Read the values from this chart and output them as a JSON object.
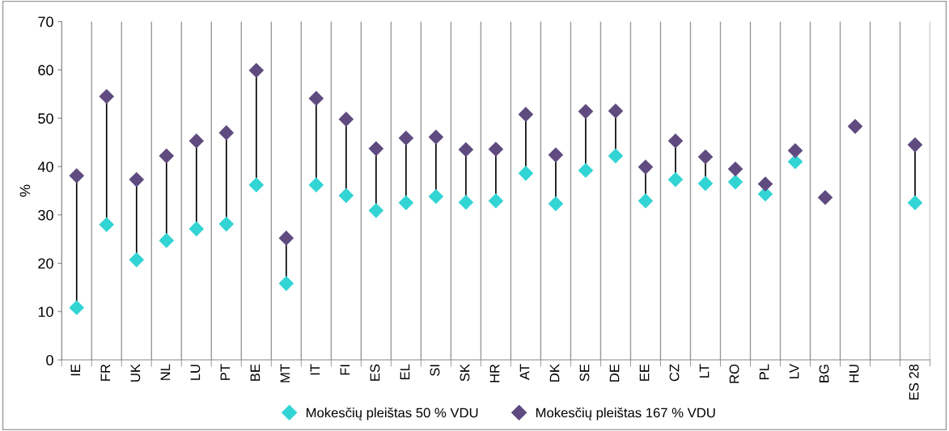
{
  "chart_data": {
    "type": "scatter",
    "ylabel": "%",
    "categories": [
      "IE",
      "FR",
      "UK",
      "NL",
      "LU",
      "PT",
      "BE",
      "MT",
      "IT",
      "FI",
      "ES",
      "EL",
      "SI",
      "SK",
      "HR",
      "AT",
      "DK",
      "SE",
      "DE",
      "EE",
      "CZ",
      "LT",
      "RO",
      "PL",
      "LV",
      "BG",
      "HU",
      null,
      "ES 28"
    ],
    "series": [
      {
        "name": "Mokesčių pleištas 50 % VDU",
        "color": "#33d4d4",
        "values": [
          10.8,
          28.0,
          20.7,
          24.7,
          27.1,
          28.1,
          36.2,
          15.8,
          36.2,
          34.0,
          30.9,
          32.5,
          33.8,
          32.6,
          32.9,
          38.6,
          32.3,
          39.2,
          42.2,
          32.9,
          37.3,
          36.5,
          36.8,
          34.3,
          41.0,
          null,
          null,
          null,
          32.5
        ]
      },
      {
        "name": "Mokesčių pleištas 167 % VDU",
        "color": "#5f4b7f",
        "values": [
          38.1,
          54.5,
          37.3,
          42.2,
          45.3,
          47.0,
          59.9,
          25.2,
          54.1,
          49.8,
          43.7,
          45.9,
          46.1,
          43.5,
          43.6,
          50.8,
          42.4,
          51.4,
          51.5,
          39.9,
          45.3,
          42.0,
          39.5,
          36.4,
          43.3,
          33.6,
          48.3,
          null,
          44.5
        ]
      }
    ],
    "ylim": [
      0,
      70
    ],
    "yticks": [
      0,
      10,
      20,
      30,
      40,
      50,
      60,
      70
    ],
    "grid": "x",
    "legend": "bottom",
    "marker": "diamond"
  }
}
